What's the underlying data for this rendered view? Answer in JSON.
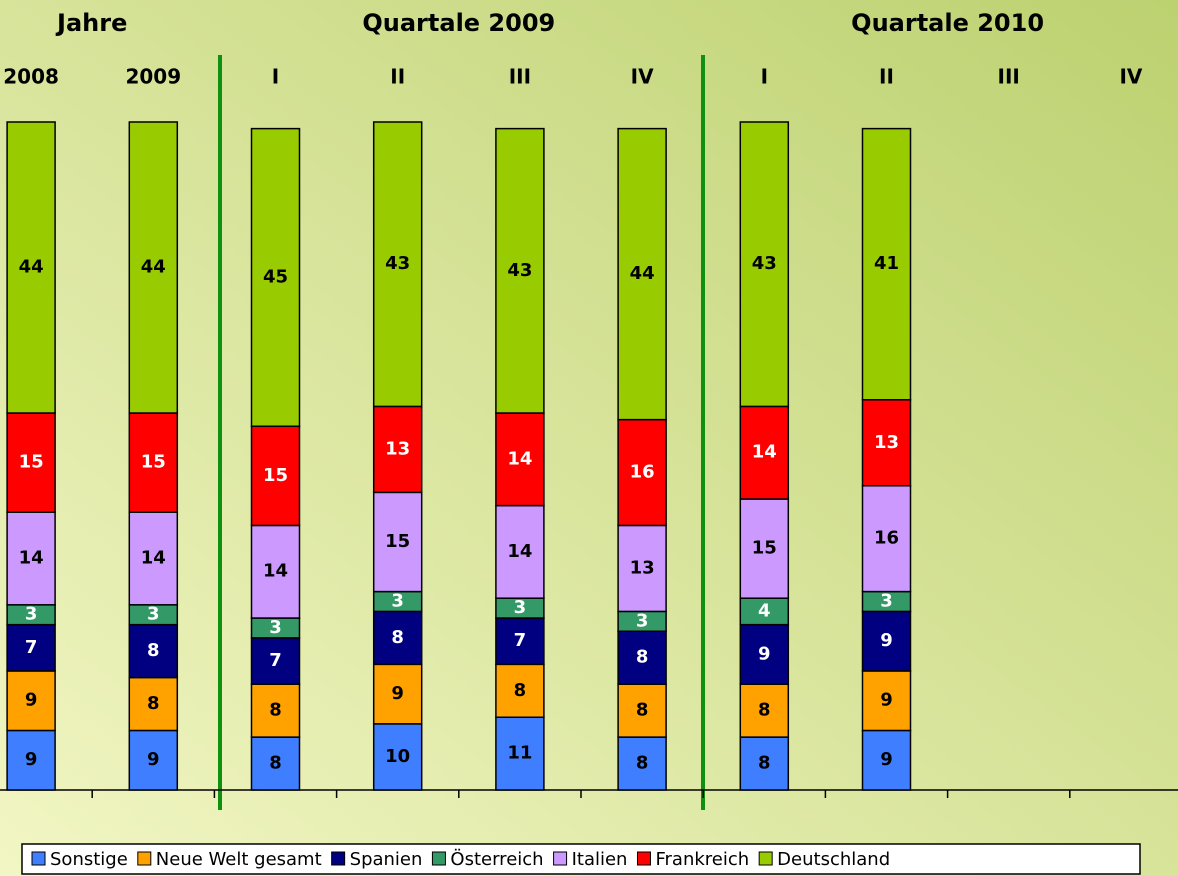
{
  "chart_data": {
    "type": "stacked_bar",
    "groups": [
      "Jahre",
      "Quartale 2009",
      "Quartale 2010"
    ],
    "categories": [
      "2008",
      "2009",
      "I",
      "II",
      "III",
      "IV",
      "I",
      "II",
      "III",
      "IV"
    ],
    "series": [
      {
        "name": "Sonstige",
        "color": "#3f7fff",
        "label_color": "#000000",
        "values": [
          9,
          9,
          8,
          10,
          11,
          8,
          8,
          9,
          null,
          null
        ]
      },
      {
        "name": "Neue Welt gesamt",
        "color": "#ffa200",
        "label_color": "#000000",
        "values": [
          9,
          8,
          8,
          9,
          8,
          8,
          8,
          9,
          null,
          null
        ]
      },
      {
        "name": "Spanien",
        "color": "#000080",
        "label_color": "#ffffff",
        "values": [
          7,
          8,
          7,
          8,
          7,
          8,
          9,
          9,
          null,
          null
        ]
      },
      {
        "name": "Österreich",
        "color": "#339966",
        "label_color": "#ffffff",
        "values": [
          3,
          3,
          3,
          3,
          3,
          3,
          4,
          3,
          null,
          null
        ]
      },
      {
        "name": "Italien",
        "color": "#cc99ff",
        "label_color": "#000000",
        "values": [
          14,
          14,
          14,
          15,
          14,
          13,
          15,
          16,
          null,
          null
        ]
      },
      {
        "name": "Frankreich",
        "color": "#ff0000",
        "label_color": "#ffffff",
        "values": [
          15,
          15,
          15,
          13,
          14,
          16,
          14,
          13,
          null,
          null
        ]
      },
      {
        "name": "Deutschland",
        "color": "#99cc00",
        "label_color": "#000000",
        "values": [
          44,
          44,
          45,
          43,
          43,
          44,
          43,
          41,
          null,
          null
        ]
      }
    ],
    "ylim": [
      0,
      101
    ]
  }
}
